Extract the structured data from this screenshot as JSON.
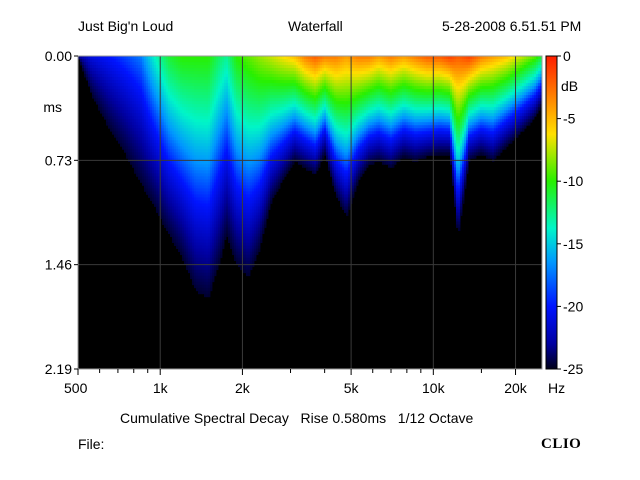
{
  "header": {
    "left": "Just Big'n Loud",
    "center": "Waterfall",
    "right": "5-28-2008 6.51.51 PM"
  },
  "footer": {
    "caption": "Cumulative Spectral Decay   Rise 0.580ms   1/12 Octave",
    "file_label": "File:",
    "brand": "CLIO"
  },
  "chart_data": {
    "type": "heatmap",
    "x_scale": "log",
    "xlim": [
      500,
      25000
    ],
    "x_ticks": [
      {
        "value": 500,
        "label": "500"
      },
      {
        "value": 1000,
        "label": "1k"
      },
      {
        "value": 2000,
        "label": "2k"
      },
      {
        "value": 5000,
        "label": "5k"
      },
      {
        "value": 10000,
        "label": "10k"
      },
      {
        "value": 20000,
        "label": "20k"
      }
    ],
    "x_unit": "Hz",
    "ylim": [
      0.0,
      2.19
    ],
    "y_ticks": [
      {
        "value": 0.0,
        "label": "0.00"
      },
      {
        "value": 0.73,
        "label": "0.73"
      },
      {
        "value": 1.46,
        "label": "1.46"
      },
      {
        "value": 2.19,
        "label": "2.19"
      }
    ],
    "y_unit": "ms",
    "colorbar": {
      "unit": "dB",
      "range": [
        -25,
        0
      ],
      "ticks": [
        {
          "value": 0,
          "label": "0"
        },
        {
          "value": -5,
          "label": "-5"
        },
        {
          "value": -10,
          "label": "-10"
        },
        {
          "value": -15,
          "label": "-15"
        },
        {
          "value": -20,
          "label": "-20"
        },
        {
          "value": -25,
          "label": "-25"
        }
      ]
    },
    "colors": {
      "background": "#000000",
      "border": "#9a9a9a",
      "grid": "#3a3a3a"
    },
    "decay_profile": [
      {
        "freq": 500,
        "level_db": -22.0,
        "decay_ms": 0.0
      },
      {
        "freq": 560,
        "level_db": -20.0,
        "decay_ms": 0.3
      },
      {
        "freq": 650,
        "level_db": -19.0,
        "decay_ms": 0.55
      },
      {
        "freq": 750,
        "level_db": -18.0,
        "decay_ms": 0.75
      },
      {
        "freq": 850,
        "level_db": -17.0,
        "decay_ms": 0.95
      },
      {
        "freq": 950,
        "level_db": -14.0,
        "decay_ms": 1.1
      },
      {
        "freq": 1080,
        "level_db": -11.0,
        "decay_ms": 1.3
      },
      {
        "freq": 1200,
        "level_db": -10.0,
        "decay_ms": 1.45
      },
      {
        "freq": 1350,
        "level_db": -10.0,
        "decay_ms": 1.7
      },
      {
        "freq": 1500,
        "level_db": -10.0,
        "decay_ms": 1.75
      },
      {
        "freq": 1650,
        "level_db": -12.0,
        "decay_ms": 1.5
      },
      {
        "freq": 1750,
        "level_db": -13.0,
        "decay_ms": 1.3
      },
      {
        "freq": 1900,
        "level_db": -10.0,
        "decay_ms": 1.5
      },
      {
        "freq": 2100,
        "level_db": -9.0,
        "decay_ms": 1.6
      },
      {
        "freq": 2300,
        "level_db": -8.0,
        "decay_ms": 1.4
      },
      {
        "freq": 2550,
        "level_db": -7.0,
        "decay_ms": 1.05
      },
      {
        "freq": 2800,
        "level_db": -6.0,
        "decay_ms": 0.9
      },
      {
        "freq": 3100,
        "level_db": -5.0,
        "decay_ms": 0.75
      },
      {
        "freq": 3400,
        "level_db": -3.0,
        "decay_ms": 0.8
      },
      {
        "freq": 3700,
        "level_db": -2.0,
        "decay_ms": 0.85
      },
      {
        "freq": 4000,
        "level_db": -3.0,
        "decay_ms": 0.7
      },
      {
        "freq": 4400,
        "level_db": -3.0,
        "decay_ms": 1.0
      },
      {
        "freq": 4800,
        "level_db": -4.0,
        "decay_ms": 1.15
      },
      {
        "freq": 5300,
        "level_db": -3.0,
        "decay_ms": 0.9
      },
      {
        "freq": 5800,
        "level_db": -3.0,
        "decay_ms": 0.78
      },
      {
        "freq": 6300,
        "level_db": -4.0,
        "decay_ms": 0.75
      },
      {
        "freq": 7000,
        "level_db": -3.0,
        "decay_ms": 0.8
      },
      {
        "freq": 7800,
        "level_db": -4.0,
        "decay_ms": 0.72
      },
      {
        "freq": 8600,
        "level_db": -3.0,
        "decay_ms": 0.75
      },
      {
        "freq": 9500,
        "level_db": -2.0,
        "decay_ms": 0.72
      },
      {
        "freq": 10500,
        "level_db": -2.0,
        "decay_ms": 0.7
      },
      {
        "freq": 11500,
        "level_db": -1.0,
        "decay_ms": 0.7
      },
      {
        "freq": 12300,
        "level_db": -2.0,
        "decay_ms": 1.3
      },
      {
        "freq": 13500,
        "level_db": -1.0,
        "decay_ms": 0.75
      },
      {
        "freq": 15000,
        "level_db": -3.0,
        "decay_ms": 0.7
      },
      {
        "freq": 16500,
        "level_db": -4.0,
        "decay_ms": 0.75
      },
      {
        "freq": 18500,
        "level_db": -5.0,
        "decay_ms": 0.65
      },
      {
        "freq": 21000,
        "level_db": -7.0,
        "decay_ms": 0.55
      },
      {
        "freq": 23500,
        "level_db": -9.0,
        "decay_ms": 0.45
      },
      {
        "freq": 25000,
        "level_db": -11.0,
        "decay_ms": 0.35
      }
    ]
  }
}
